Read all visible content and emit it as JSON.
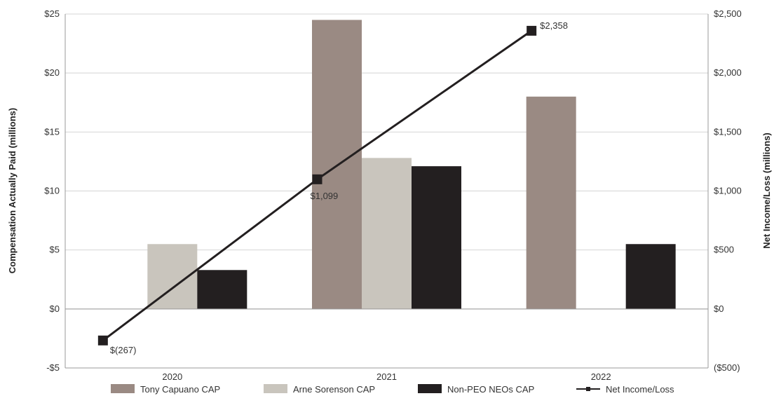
{
  "chart_data": {
    "type": "bar",
    "categories": [
      "2020",
      "2021",
      "2022"
    ],
    "series": [
      {
        "name": "Tony Capuano CAP",
        "color": "#9a8a83",
        "axis": "left",
        "values": [
          null,
          24.5,
          18.0
        ]
      },
      {
        "name": "Arne Sorenson CAP",
        "color": "#c9c5bd",
        "axis": "left",
        "values": [
          5.5,
          12.8,
          null
        ]
      },
      {
        "name": "Non-PEO NEOs CAP",
        "color": "#231f20",
        "axis": "left",
        "values": [
          3.3,
          12.1,
          5.5
        ]
      }
    ],
    "line_series": {
      "name": "Net Income/Loss",
      "type": "line",
      "color": "#231f20",
      "axis": "right",
      "values": [
        -267,
        1099,
        2358
      ],
      "labels": [
        "$(267)",
        "$1,099",
        "$2,358"
      ]
    },
    "ylabel": "Compensation Actually Paid (millions)",
    "ylim": [
      -5,
      25
    ],
    "yticks": [
      25,
      20,
      15,
      10,
      5,
      0,
      -5
    ],
    "ytick_labels": [
      "$25",
      "$20",
      "$15",
      "$10",
      "$5",
      "$0",
      "-$5"
    ],
    "y2label": "Net Income/Loss (millions)",
    "y2lim": [
      -500,
      2500
    ],
    "y2ticks": [
      2500,
      2000,
      1500,
      1000,
      500,
      0,
      -500
    ],
    "y2tick_labels": [
      "$2,500",
      "$2,000",
      "$1,500",
      "$1,000",
      "$500",
      "$0",
      "($500)"
    ],
    "grid": true,
    "legend_position": "bottom"
  }
}
